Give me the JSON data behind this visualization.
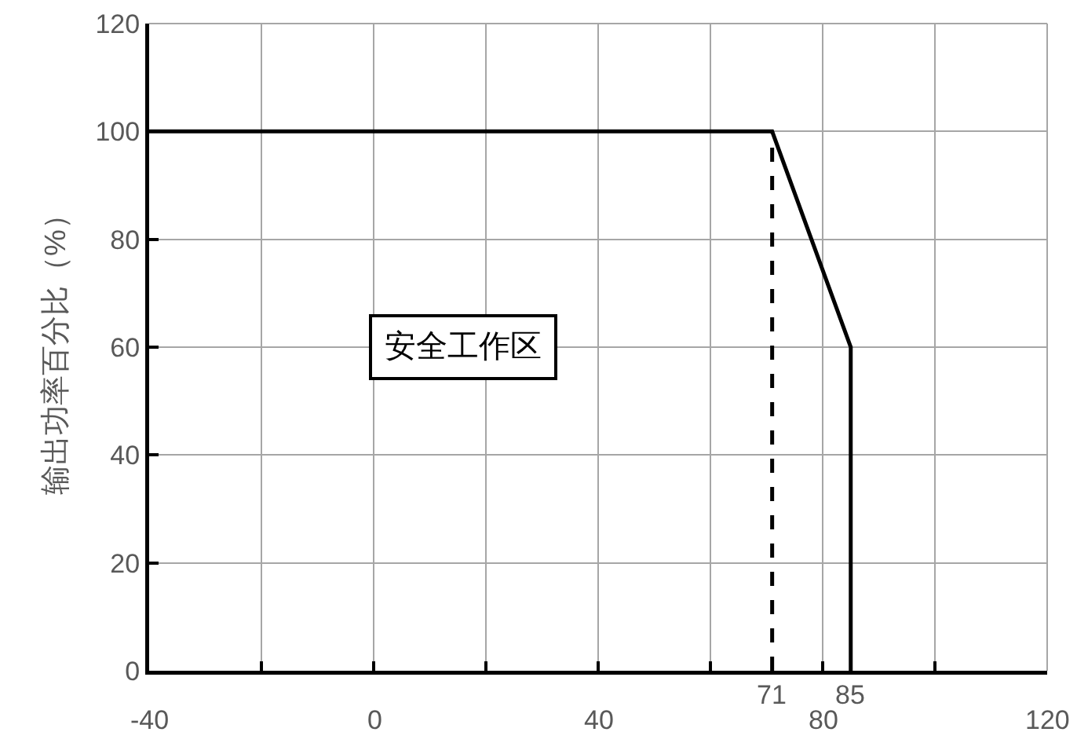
{
  "chart_data": {
    "type": "line",
    "ylabel": "输出功率百分比（%）",
    "series": [
      {
        "x": [
          -40,
          71,
          85,
          85
        ],
        "values": [
          100,
          100,
          60,
          0
        ],
        "color": "#000000",
        "line_style": "solid"
      },
      {
        "x": [
          71,
          71
        ],
        "values": [
          0,
          100
        ],
        "color": "#000000",
        "line_style": "dashed"
      }
    ],
    "xlim": [
      -40,
      120
    ],
    "xticks": [
      -40,
      {
        "value": -20,
        "label": null
      },
      0,
      {
        "value": 20,
        "label": null
      },
      40,
      {
        "value": 60,
        "label": null
      },
      80,
      {
        "value": 100,
        "label": null
      },
      120
    ],
    "ylim": [
      0,
      120
    ],
    "yticks": [
      0,
      20,
      40,
      60,
      80,
      100,
      120
    ],
    "grid": true,
    "marker": "none",
    "annotations": [
      "安全工作区",
      {
        "text": "71",
        "x": 71,
        "y": 0
      },
      {
        "text": "85",
        "x": 85,
        "y": 0
      }
    ]
  }
}
